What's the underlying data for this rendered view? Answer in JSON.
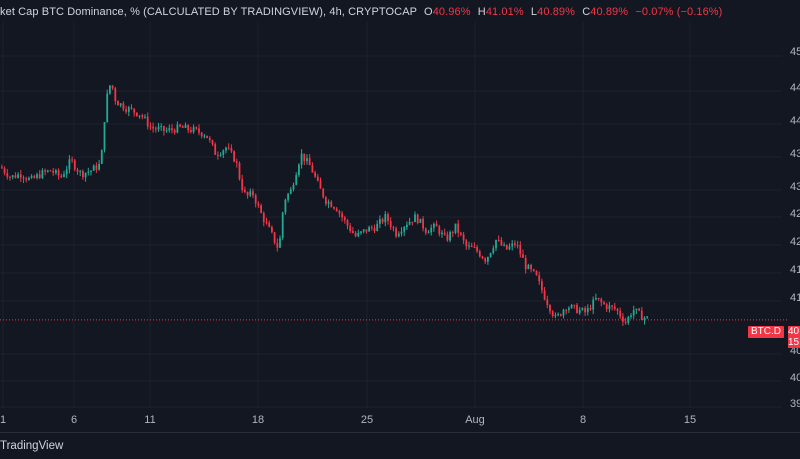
{
  "legend": {
    "title": "ket Cap BTC Dominance, % (CALCULATED BY TRADINGVIEW), 4h, CRYPTOCAP",
    "o_key": "O",
    "o_val": "40.96%",
    "h_key": "H",
    "h_val": "41.01%",
    "l_key": "L",
    "l_val": "40.89%",
    "c_key": "C",
    "c_val": "40.89%",
    "change": "−0.07% (−0.16%)"
  },
  "y_axis_labels": [
    "45",
    "44",
    "44",
    "43",
    "43",
    "42",
    "42",
    "41",
    "41",
    "40",
    "40",
    "39"
  ],
  "x_axis_labels": [
    "1",
    "6",
    "11",
    "18",
    "25",
    "Aug",
    "8",
    "15"
  ],
  "price_tag": {
    "symbol": "BTC.D",
    "value_line1": "40",
    "value_line2": "15"
  },
  "footer": {
    "brand": "TradingView"
  },
  "colors": {
    "up": "#22ab94",
    "down": "#f23645",
    "background": "#131722",
    "grid": "#1e222d"
  },
  "chart_data": {
    "type": "candlestick",
    "title": "ket Cap BTC Dominance, % (CALCULATED BY TRADINGVIEW), 4h, CRYPTOCAP",
    "interval": "4h",
    "last_close": 40.89,
    "ylim": [
      39.6,
      45.4
    ],
    "anchors": [
      [
        0,
        43.2
      ],
      [
        10,
        43.05
      ],
      [
        20,
        43.1
      ],
      [
        30,
        43.0
      ],
      [
        40,
        43.1
      ],
      [
        50,
        43.15
      ],
      [
        60,
        43.05
      ],
      [
        70,
        43.3
      ],
      [
        80,
        43.1
      ],
      [
        90,
        43.15
      ],
      [
        100,
        43.25
      ],
      [
        105,
        44.2
      ],
      [
        110,
        44.5
      ],
      [
        115,
        44.2
      ],
      [
        125,
        44.1
      ],
      [
        140,
        44.0
      ],
      [
        150,
        43.8
      ],
      [
        165,
        43.75
      ],
      [
        180,
        43.8
      ],
      [
        195,
        43.75
      ],
      [
        205,
        43.7
      ],
      [
        215,
        43.4
      ],
      [
        225,
        43.5
      ],
      [
        235,
        43.3
      ],
      [
        240,
        42.95
      ],
      [
        245,
        42.75
      ],
      [
        252,
        42.8
      ],
      [
        260,
        42.5
      ],
      [
        270,
        42.2
      ],
      [
        278,
        41.95
      ],
      [
        283,
        42.7
      ],
      [
        290,
        42.85
      ],
      [
        300,
        43.4
      ],
      [
        310,
        43.2
      ],
      [
        318,
        42.9
      ],
      [
        325,
        42.7
      ],
      [
        335,
        42.6
      ],
      [
        345,
        42.35
      ],
      [
        355,
        42.15
      ],
      [
        365,
        42.25
      ],
      [
        375,
        42.3
      ],
      [
        385,
        42.45
      ],
      [
        395,
        42.2
      ],
      [
        405,
        42.35
      ],
      [
        415,
        42.45
      ],
      [
        425,
        42.25
      ],
      [
        435,
        42.3
      ],
      [
        445,
        42.1
      ],
      [
        455,
        42.3
      ],
      [
        465,
        42.0
      ],
      [
        475,
        41.95
      ],
      [
        485,
        41.8
      ],
      [
        495,
        42.1
      ],
      [
        505,
        41.95
      ],
      [
        515,
        42.05
      ],
      [
        525,
        41.7
      ],
      [
        535,
        41.55
      ],
      [
        545,
        41.2
      ],
      [
        555,
        40.9
      ],
      [
        565,
        41.1
      ],
      [
        575,
        41.05
      ],
      [
        585,
        41.0
      ],
      [
        595,
        41.2
      ],
      [
        605,
        41.1
      ],
      [
        615,
        41.05
      ],
      [
        625,
        40.85
      ],
      [
        632,
        41.05
      ],
      [
        640,
        40.95
      ],
      [
        648,
        40.9
      ]
    ]
  }
}
